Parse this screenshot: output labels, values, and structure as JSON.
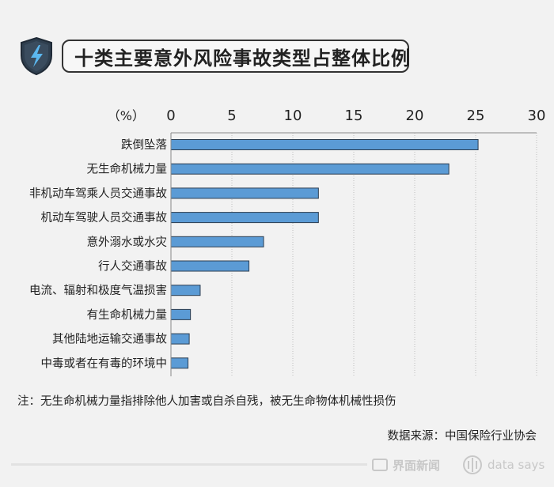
{
  "header": {
    "title": "十类主要意外风险事故类型占整体比例",
    "icon": "lightning-shield-icon"
  },
  "chart_data": {
    "type": "bar",
    "orientation": "horizontal",
    "unit_label": "（%）",
    "xlim": [
      0,
      30
    ],
    "ticks": [
      0,
      5,
      10,
      15,
      20,
      25,
      30
    ],
    "grid": "vertical-dotted",
    "bar_color": "#5b9bd5",
    "categories": [
      "跌倒坠落",
      "无生命机械力量",
      "非机动车驾乘人员交通事故",
      "机动车驾驶人员交通事故",
      "意外溺水或水灾",
      "行人交通事故",
      "电流、辐射和极度气温损害",
      "有生命机械力量",
      "其他陆地运输交通事故",
      "中毒或者在有毒的环境中"
    ],
    "values": [
      25.2,
      22.8,
      12.1,
      12.1,
      7.6,
      6.4,
      2.4,
      1.6,
      1.5,
      1.4
    ]
  },
  "note": "注：无生命机械力量指排除他人加害或自杀自残，被无生命物体机械性损伤",
  "source": "数据来源：中国保险行业协会",
  "footer": {
    "brand1": "界面新闻",
    "brand2": "data says",
    "brand1_icon": "jiemian-logo-icon",
    "brand2_icon": "datasays-logo-icon"
  }
}
